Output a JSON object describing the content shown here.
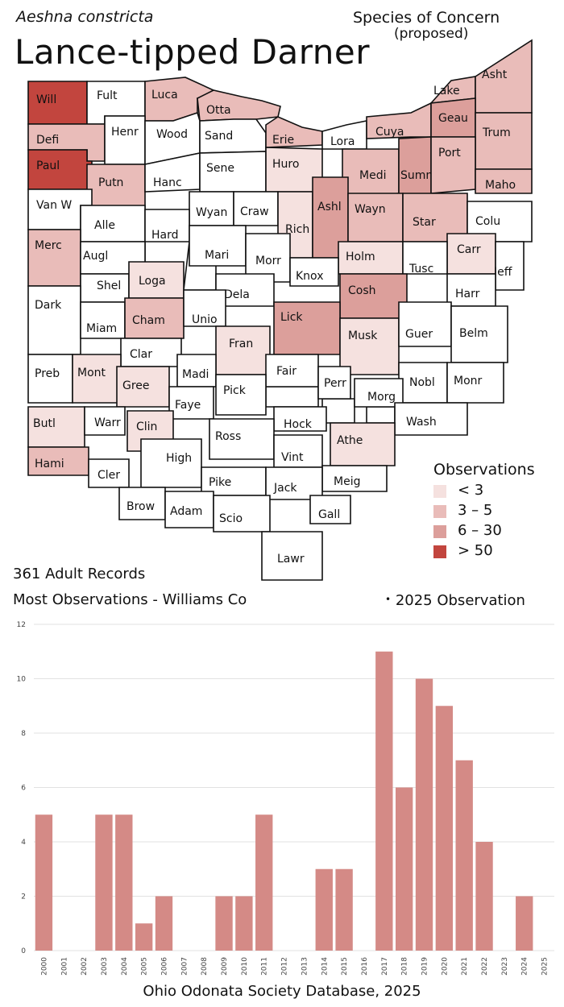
{
  "header": {
    "scientific_name": "Aeshna constricta",
    "common_name": "Lance-tipped Darner",
    "status": "Species of Concern",
    "status_note": "(proposed)"
  },
  "summary": {
    "records": "361 Adult Records",
    "most": "Most Observations - Williams Co",
    "obs_2025_label": "2025  Observation",
    "obs_2025_marker": "•"
  },
  "legend": {
    "title": "Observations",
    "items": [
      {
        "label": "< 3",
        "color": "#f5e1df"
      },
      {
        "label": "3 – 5",
        "color": "#e9bcb9"
      },
      {
        "label": "6 – 30",
        "color": "#dc9f9b"
      },
      {
        "label": "> 50",
        "color": "#c2453e"
      }
    ]
  },
  "map": {
    "counties": [
      {
        "name": "Will",
        "level": 4
      },
      {
        "name": "Fult",
        "level": 0
      },
      {
        "name": "Luca",
        "level": 2
      },
      {
        "name": "Otta",
        "level": 2
      },
      {
        "name": "Defi",
        "level": 2
      },
      {
        "name": "Henr",
        "level": 0
      },
      {
        "name": "Wood",
        "level": 0
      },
      {
        "name": "Sand",
        "level": 0
      },
      {
        "name": "Erie",
        "level": 2
      },
      {
        "name": "Lora",
        "level": 0
      },
      {
        "name": "Cuya",
        "level": 2
      },
      {
        "name": "Lake",
        "level": 2
      },
      {
        "name": "Asht",
        "level": 2
      },
      {
        "name": "Geau",
        "level": 3
      },
      {
        "name": "Trum",
        "level": 2
      },
      {
        "name": "Paul",
        "level": 4
      },
      {
        "name": "Putn",
        "level": 2
      },
      {
        "name": "Hanc",
        "level": 0
      },
      {
        "name": "Sene",
        "level": 0
      },
      {
        "name": "Huro",
        "level": 1
      },
      {
        "name": "Medi",
        "level": 2
      },
      {
        "name": "Summ",
        "level": 3
      },
      {
        "name": "Port",
        "level": 2
      },
      {
        "name": "Maho",
        "level": 2
      },
      {
        "name": "Van W",
        "level": 0
      },
      {
        "name": "Alle",
        "level": 0
      },
      {
        "name": "Wyan",
        "level": 0
      },
      {
        "name": "Craw",
        "level": 0
      },
      {
        "name": "Rich",
        "level": 1
      },
      {
        "name": "Ashl",
        "level": 3
      },
      {
        "name": "Wayn",
        "level": 2
      },
      {
        "name": "Star",
        "level": 2
      },
      {
        "name": "Colu",
        "level": 0
      },
      {
        "name": "Hard",
        "level": 0
      },
      {
        "name": "Merc",
        "level": 2
      },
      {
        "name": "Augl",
        "level": 0
      },
      {
        "name": "Mari",
        "level": 0
      },
      {
        "name": "Morr",
        "level": 0
      },
      {
        "name": "Holm",
        "level": 1
      },
      {
        "name": "Carr",
        "level": 1
      },
      {
        "name": "Tusc",
        "level": 0
      },
      {
        "name": "Jeff",
        "level": 0
      },
      {
        "name": "Shel",
        "level": 0
      },
      {
        "name": "Loga",
        "level": 1
      },
      {
        "name": "Knox",
        "level": 0
      },
      {
        "name": "Dela",
        "level": 0
      },
      {
        "name": "Cosh",
        "level": 3
      },
      {
        "name": "Harr",
        "level": 0
      },
      {
        "name": "Dark",
        "level": 0
      },
      {
        "name": "Miam",
        "level": 0
      },
      {
        "name": "Cham",
        "level": 2
      },
      {
        "name": "Unio",
        "level": 0
      },
      {
        "name": "Lick",
        "level": 3
      },
      {
        "name": "Musk",
        "level": 1
      },
      {
        "name": "Guer",
        "level": 0
      },
      {
        "name": "Belm",
        "level": 0
      },
      {
        "name": "Fran",
        "level": 1
      },
      {
        "name": "Clar",
        "level": 0
      },
      {
        "name": "Preb",
        "level": 0
      },
      {
        "name": "Mont",
        "level": 1
      },
      {
        "name": "Gree",
        "level": 1
      },
      {
        "name": "Madi",
        "level": 0
      },
      {
        "name": "Fair",
        "level": 0
      },
      {
        "name": "Perr",
        "level": 0
      },
      {
        "name": "Nobl",
        "level": 0
      },
      {
        "name": "Monr",
        "level": 0
      },
      {
        "name": "Morg",
        "level": 0
      },
      {
        "name": "Pick",
        "level": 0
      },
      {
        "name": "Faye",
        "level": 0
      },
      {
        "name": "Butl",
        "level": 1
      },
      {
        "name": "Warr",
        "level": 0
      },
      {
        "name": "Clin",
        "level": 1
      },
      {
        "name": "Hock",
        "level": 0
      },
      {
        "name": "Wash",
        "level": 0
      },
      {
        "name": "Ross",
        "level": 0
      },
      {
        "name": "Athe",
        "level": 1
      },
      {
        "name": "High",
        "level": 0
      },
      {
        "name": "Vint",
        "level": 0
      },
      {
        "name": "Hami",
        "level": 2
      },
      {
        "name": "Cler",
        "level": 0
      },
      {
        "name": "Meig",
        "level": 0
      },
      {
        "name": "Pike",
        "level": 0
      },
      {
        "name": "Jack",
        "level": 0
      },
      {
        "name": "Brow",
        "level": 0
      },
      {
        "name": "Adam",
        "level": 0
      },
      {
        "name": "Scio",
        "level": 0
      },
      {
        "name": "Gall",
        "level": 0
      },
      {
        "name": "Lawr",
        "level": 0
      }
    ]
  },
  "chart_data": {
    "type": "bar",
    "categories": [
      "2000",
      "2001",
      "2002",
      "2003",
      "2004",
      "2005",
      "2006",
      "2007",
      "2008",
      "2009",
      "2010",
      "2011",
      "2012",
      "2013",
      "2014",
      "2015",
      "2016",
      "2017",
      "2018",
      "2019",
      "2020",
      "2021",
      "2022",
      "2023",
      "2024",
      "2025"
    ],
    "values": [
      5,
      0,
      0,
      5,
      5,
      1,
      2,
      0,
      0,
      2,
      2,
      5,
      0,
      0,
      3,
      3,
      0,
      11,
      6,
      10,
      9,
      7,
      4,
      0,
      2,
      0
    ],
    "bar_color": "#d48a86",
    "ylim": [
      0,
      12
    ],
    "yticks": [
      "0",
      "2",
      "4",
      "6",
      "8",
      "10",
      "12"
    ],
    "grid": true,
    "title": "",
    "xlabel": "",
    "ylabel": ""
  },
  "footer": {
    "source": "Ohio Odonata Society Database, 2025"
  }
}
